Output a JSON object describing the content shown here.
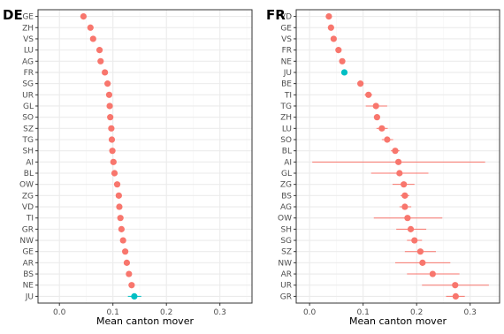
{
  "chart_data": [
    {
      "type": "scatter",
      "panel_label": "DE",
      "xlabel": "Mean canton mover",
      "xlim": [
        -0.04,
        0.36
      ],
      "x_ticks": [
        0.0,
        0.1,
        0.2,
        0.3
      ],
      "x_tick_labels": [
        "0.0",
        "0.1",
        "0.2",
        "0.3"
      ],
      "grid": true,
      "categories": [
        "GE",
        "ZH",
        "VS",
        "LU",
        "AG",
        "FR",
        "SG",
        "UR",
        "GL",
        "SO",
        "SZ",
        "TG",
        "SH",
        "AI",
        "BL",
        "OW",
        "ZG",
        "VD",
        "TI",
        "GR",
        "NW",
        "GE",
        "AR",
        "BS",
        "NE",
        "JU"
      ],
      "values": [
        0.045,
        0.058,
        0.063,
        0.075,
        0.077,
        0.085,
        0.09,
        0.093,
        0.094,
        0.095,
        0.097,
        0.098,
        0.099,
        0.101,
        0.103,
        0.108,
        0.111,
        0.112,
        0.114,
        0.116,
        0.119,
        0.123,
        0.126,
        0.13,
        0.135,
        0.14
      ],
      "ci_low": [
        null,
        null,
        null,
        null,
        null,
        null,
        null,
        null,
        null,
        null,
        null,
        null,
        null,
        null,
        null,
        null,
        null,
        null,
        null,
        null,
        null,
        null,
        null,
        null,
        null,
        0.128
      ],
      "ci_high": [
        null,
        null,
        null,
        null,
        null,
        null,
        null,
        null,
        null,
        null,
        null,
        null,
        null,
        null,
        null,
        null,
        null,
        null,
        null,
        null,
        null,
        null,
        null,
        null,
        null,
        0.153
      ],
      "highlight": [
        false,
        false,
        false,
        false,
        false,
        false,
        false,
        false,
        false,
        false,
        false,
        false,
        false,
        false,
        false,
        false,
        false,
        false,
        false,
        false,
        false,
        false,
        false,
        false,
        false,
        true
      ]
    },
    {
      "type": "scatter",
      "panel_label": "FR",
      "xlabel": "Mean canton mover",
      "xlim": [
        -0.025,
        0.355
      ],
      "x_ticks": [
        0.0,
        0.1,
        0.2,
        0.3
      ],
      "x_tick_labels": [
        "0.0",
        "0.1",
        "0.2",
        "0.3"
      ],
      "grid": true,
      "categories": [
        "VD",
        "GE",
        "VS",
        "FR",
        "NE",
        "JU",
        "BE",
        "TI",
        "TG",
        "ZH",
        "LU",
        "SO",
        "BL",
        "AI",
        "GL",
        "ZG",
        "BS",
        "AG",
        "OW",
        "SH",
        "SG",
        "SZ",
        "NW",
        "AR",
        "UR",
        "GR"
      ],
      "values": [
        0.036,
        0.04,
        0.045,
        0.054,
        0.061,
        0.065,
        0.095,
        0.11,
        0.124,
        0.126,
        0.135,
        0.145,
        0.16,
        0.166,
        0.168,
        0.176,
        0.178,
        0.178,
        0.183,
        0.189,
        0.196,
        0.207,
        0.211,
        0.23,
        0.272,
        0.273
      ],
      "ci_low": [
        null,
        null,
        null,
        null,
        null,
        null,
        null,
        0.103,
        0.105,
        null,
        0.125,
        0.135,
        0.152,
        0.005,
        0.115,
        0.155,
        0.17,
        0.168,
        0.12,
        0.162,
        0.182,
        0.178,
        0.16,
        0.182,
        0.21,
        0.255
      ],
      "ci_high": [
        null,
        null,
        null,
        null,
        null,
        null,
        null,
        0.117,
        0.145,
        null,
        0.146,
        0.156,
        0.168,
        0.328,
        0.222,
        0.196,
        0.186,
        0.19,
        0.248,
        0.218,
        0.21,
        0.236,
        0.263,
        0.28,
        0.335,
        0.29
      ],
      "highlight": [
        false,
        false,
        false,
        false,
        false,
        true,
        false,
        false,
        false,
        false,
        false,
        false,
        false,
        false,
        false,
        false,
        false,
        false,
        false,
        false,
        false,
        false,
        false,
        false,
        false,
        false
      ]
    }
  ],
  "colors": {
    "point": "#F8766D",
    "highlight": "#00BFC4",
    "panel_border": "#333333",
    "grid_major": "#EBEBEB",
    "grid_minor": "#F5F5F5"
  }
}
